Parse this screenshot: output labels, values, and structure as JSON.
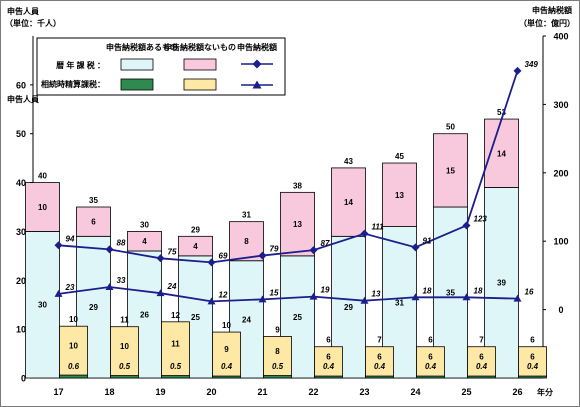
{
  "chart_data": {
    "type": "bar",
    "left_axis": {
      "title_line1": "申告人員",
      "title_line2": "（単位：千人）",
      "left_title": "申告人員",
      "ylim": [
        0,
        70
      ],
      "ticks": [
        0,
        10,
        20,
        30,
        40,
        50,
        60
      ]
    },
    "right_axis": {
      "title_line1": "申告納税額",
      "title_line2": "（単位：億円）",
      "ylim": [
        -100,
        400
      ],
      "ticks": [
        0,
        100,
        200,
        300,
        400
      ]
    },
    "x_unit": "年分",
    "categories": [
      "17",
      "18",
      "19",
      "20",
      "21",
      "22",
      "23",
      "24",
      "25",
      "26"
    ],
    "stacks": [
      {
        "group": "暦年課税",
        "segments": [
          {
            "name": "申告納税額あるもの",
            "color": "#dff6f8",
            "values": [
              30,
              29,
              26,
              25,
              24,
              25,
              29,
              31,
              35,
              39
            ]
          },
          {
            "name": "申告納税額ないもの",
            "color": "#f8c8dc",
            "values": [
              10,
              6,
              4,
              4,
              8,
              13,
              14,
              13,
              15,
              14
            ]
          }
        ],
        "totals": [
          40,
          35,
          30,
          29,
          31,
          38,
          43,
          45,
          50,
          53
        ]
      },
      {
        "group": "相続時精算課税",
        "segments": [
          {
            "name": "申告納税額あるもの",
            "color": "#2f8a4f",
            "values": [
              0.6,
              0.5,
              0.5,
              0.4,
              0.5,
              0.4,
              0.4,
              0.4,
              0.4,
              0.4
            ]
          },
          {
            "name": "申告納税額ないもの",
            "color": "#fde8a6",
            "values": [
              10,
              10,
              11,
              9,
              8,
              6,
              6,
              6,
              6,
              6
            ]
          }
        ],
        "totals": [
          10,
          11,
          12,
          10,
          9,
          6,
          7,
          6,
          7,
          6
        ]
      }
    ],
    "lines": [
      {
        "name": "申告納税額",
        "group": "暦年課税",
        "marker": "diamond",
        "color": "#1a1f8c",
        "values": [
          94,
          88,
          75,
          69,
          79,
          87,
          111,
          91,
          123,
          349
        ]
      },
      {
        "name": "申告納税額",
        "group": "相続時精算課税",
        "marker": "triangle",
        "color": "#1a1f8c",
        "values": [
          23,
          33,
          24,
          12,
          15,
          19,
          13,
          18,
          18,
          16
        ]
      }
    ]
  },
  "legend": {
    "col1": "申告納税額あるもの",
    "col2": "申告納税額ないもの",
    "col3": "申告納税額",
    "row1": "暦 年 課 税 ：",
    "row2": "相続時精算課税："
  }
}
